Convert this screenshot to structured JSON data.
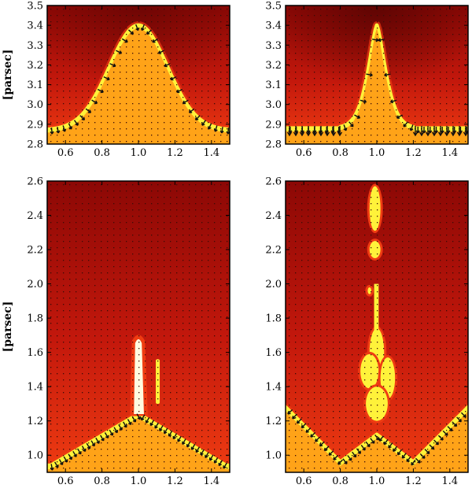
{
  "chart_data": [
    {
      "type": "heatmap",
      "title": "",
      "xlabel": "",
      "ylabel": "[parsec]",
      "xlim": [
        0.5,
        1.5
      ],
      "ylim": [
        2.8,
        3.5
      ],
      "x_ticks": [
        0.6,
        0.8,
        1.0,
        1.2,
        1.4
      ],
      "x_tick_labels": [
        "0.6",
        "0.8",
        "1.0",
        "1.2",
        "1.4"
      ],
      "y_ticks": [
        2.8,
        2.9,
        3.0,
        3.1,
        3.2,
        3.3,
        3.4,
        3.5
      ],
      "y_tick_labels": [
        "2.8",
        "2.9",
        "3.0",
        "3.1",
        "3.2",
        "3.3",
        "3.4",
        "3.5"
      ],
      "front_shape": "wide-gaussian",
      "front_base": 2.87,
      "front_peak": 3.4,
      "front_width": 0.2
    },
    {
      "type": "heatmap",
      "title": "",
      "xlabel": "",
      "ylabel": "",
      "xlim": [
        0.5,
        1.5
      ],
      "ylim": [
        2.8,
        3.5
      ],
      "x_ticks": [
        0.6,
        0.8,
        1.0,
        1.2,
        1.4
      ],
      "x_tick_labels": [
        "0.6",
        "0.8",
        "1.0",
        "1.2",
        "1.4"
      ],
      "y_ticks": [
        2.8,
        2.9,
        3.0,
        3.1,
        3.2,
        3.3,
        3.4,
        3.5
      ],
      "y_tick_labels": [
        "2.8",
        "2.9",
        "3.0",
        "3.1",
        "3.2",
        "3.3",
        "3.4",
        "3.5"
      ],
      "front_shape": "narrow-peak",
      "front_base": 2.88,
      "front_peak": 3.4,
      "front_width": 0.07
    },
    {
      "type": "heatmap",
      "title": "",
      "xlabel": "",
      "ylabel": "[parsec]",
      "xlim": [
        0.5,
        1.5
      ],
      "ylim": [
        0.9,
        2.6
      ],
      "x_ticks": [
        0.6,
        0.8,
        1.0,
        1.2,
        1.4
      ],
      "x_tick_labels": [
        "0.6",
        "0.8",
        "1.0",
        "1.2",
        "1.4"
      ],
      "y_ticks": [
        1.0,
        1.2,
        1.4,
        1.6,
        1.8,
        2.0,
        2.2,
        2.4,
        2.6
      ],
      "y_tick_labels": [
        "1.0",
        "1.2",
        "1.4",
        "1.6",
        "1.8",
        "2.0",
        "2.2",
        "2.4",
        "2.6"
      ],
      "front_shape": "tent-with-pillar",
      "front_edge": 0.94,
      "front_center": 1.24,
      "pillar_top": 1.7
    },
    {
      "type": "heatmap",
      "title": "",
      "xlabel": "",
      "ylabel": "",
      "xlim": [
        0.5,
        1.5
      ],
      "ylim": [
        0.9,
        2.6
      ],
      "x_ticks": [
        0.6,
        0.8,
        1.0,
        1.2,
        1.4
      ],
      "x_tick_labels": [
        "0.6",
        "0.8",
        "1.0",
        "1.2",
        "1.4"
      ],
      "y_ticks": [
        1.0,
        1.2,
        1.4,
        1.6,
        1.8,
        2.0,
        2.2,
        2.4,
        2.6
      ],
      "y_tick_labels": [
        "1.0",
        "1.2",
        "1.4",
        "1.6",
        "1.8",
        "2.0",
        "2.2",
        "2.4",
        "2.6"
      ],
      "front_shape": "zigzag-with-column",
      "front_edge": 1.28,
      "front_trough": 0.96,
      "column_top": 2.57
    }
  ],
  "colors": {
    "background_red": "#c4180c",
    "deep_red": "#8c0805",
    "glow_red": "#ef3c12",
    "front_yellow": "#fff23a",
    "front_orange": "#ffa318",
    "dense_orange": "#f4880c",
    "arrow": "#101010",
    "dot": "#3a0c08"
  }
}
